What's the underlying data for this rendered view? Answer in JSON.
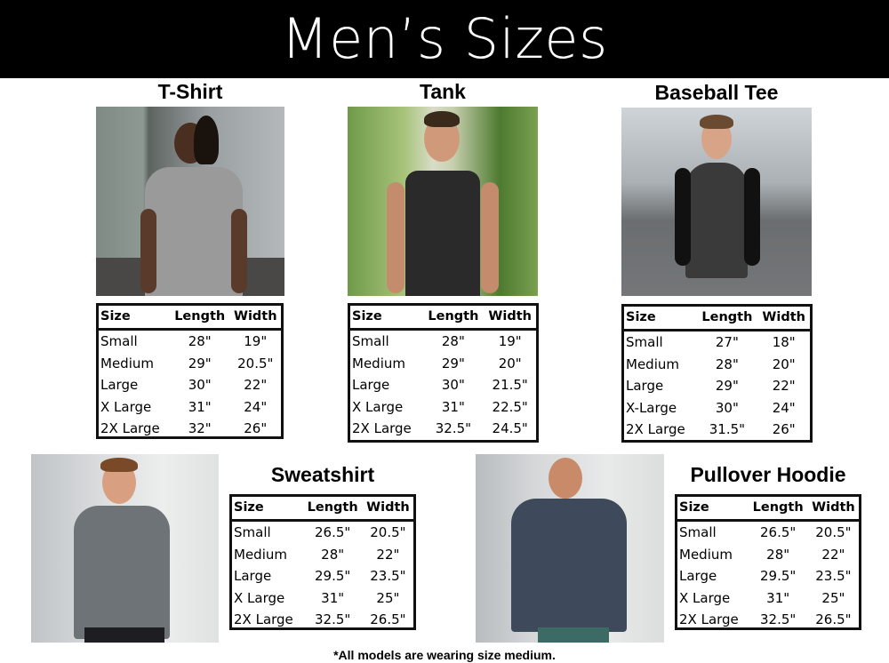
{
  "title": "Men’s Sizes",
  "columns": [
    "Size",
    "Length",
    "Width"
  ],
  "products": [
    {
      "name": "T-Shirt",
      "rows": [
        [
          "Small",
          "28\"",
          "19\""
        ],
        [
          "Medium",
          "29\"",
          "20.5\""
        ],
        [
          "Large",
          "30\"",
          "22\""
        ],
        [
          "X Large",
          "31\"",
          "24\""
        ],
        [
          "2X Large",
          "32\"",
          "26\""
        ]
      ]
    },
    {
      "name": "Tank",
      "rows": [
        [
          "Small",
          "28\"",
          "19\""
        ],
        [
          "Medium",
          "29\"",
          "20\""
        ],
        [
          "Large",
          "30\"",
          "21.5\""
        ],
        [
          "X Large",
          "31\"",
          "22.5\""
        ],
        [
          "2X Large",
          "32.5\"",
          "24.5\""
        ]
      ]
    },
    {
      "name": "Baseball Tee",
      "rows": [
        [
          "Small",
          "27\"",
          "18\""
        ],
        [
          "Medium",
          "28\"",
          "20\""
        ],
        [
          "Large",
          "29\"",
          "22\""
        ],
        [
          "X-Large",
          "30\"",
          "24\""
        ],
        [
          "2X Large",
          "31.5\"",
          "26\""
        ]
      ]
    },
    {
      "name": "Sweatshirt",
      "rows": [
        [
          "Small",
          "26.5\"",
          "20.5\""
        ],
        [
          "Medium",
          "28\"",
          "22\""
        ],
        [
          "Large",
          "29.5\"",
          "23.5\""
        ],
        [
          "X Large",
          "31\"",
          "25\""
        ],
        [
          "2X Large",
          "32.5\"",
          "26.5\""
        ]
      ]
    },
    {
      "name": "Pullover Hoodie",
      "rows": [
        [
          "Small",
          "26.5\"",
          "20.5\""
        ],
        [
          "Medium",
          "28\"",
          "22\""
        ],
        [
          "Large",
          "29.5\"",
          "23.5\""
        ],
        [
          "X Large",
          "31\"",
          "25\""
        ],
        [
          "2X Large",
          "32.5\"",
          "26.5\""
        ]
      ]
    }
  ],
  "footnote": "*All models are wearing size medium."
}
